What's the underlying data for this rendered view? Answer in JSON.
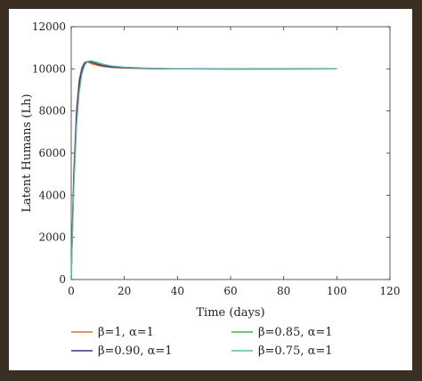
{
  "chart_data": {
    "type": "line",
    "title": "",
    "xlabel": "Time (days)",
    "ylabel": "Latent Humans (Lh)",
    "xlim": [
      0,
      120
    ],
    "ylim": [
      0,
      12000
    ],
    "xticks": [
      0,
      20,
      40,
      60,
      80,
      100,
      120
    ],
    "yticks": [
      0,
      2000,
      4000,
      6000,
      8000,
      10000,
      12000
    ],
    "grid": false,
    "legend_position": "bottom",
    "series": [
      {
        "name": "β=1, α=1",
        "color": "#e0703a",
        "points": [
          [
            0,
            0
          ],
          [
            0.5,
            2800
          ],
          [
            1,
            5200
          ],
          [
            2,
            8100
          ],
          [
            3,
            9500
          ],
          [
            4,
            10050
          ],
          [
            5,
            10300
          ],
          [
            6,
            10330
          ],
          [
            7,
            10280
          ],
          [
            8,
            10220
          ],
          [
            10,
            10160
          ],
          [
            12,
            10110
          ],
          [
            15,
            10070
          ],
          [
            20,
            10035
          ],
          [
            30,
            10010
          ],
          [
            40,
            10000
          ],
          [
            60,
            9990
          ],
          [
            80,
            9995
          ],
          [
            100,
            10000
          ]
        ]
      },
      {
        "name": "β=0.85, α=1",
        "color": "#4caf50",
        "points": [
          [
            0,
            0
          ],
          [
            0.5,
            2500
          ],
          [
            1,
            4700
          ],
          [
            2,
            7600
          ],
          [
            3,
            9100
          ],
          [
            4,
            9900
          ],
          [
            5,
            10250
          ],
          [
            6,
            10350
          ],
          [
            7,
            10370
          ],
          [
            8,
            10340
          ],
          [
            10,
            10250
          ],
          [
            12,
            10180
          ],
          [
            15,
            10110
          ],
          [
            20,
            10060
          ],
          [
            30,
            10020
          ],
          [
            40,
            10005
          ],
          [
            60,
            9995
          ],
          [
            80,
            9995
          ],
          [
            100,
            10000
          ]
        ]
      },
      {
        "name": "β=0.90, α=1",
        "color": "#4b2a78",
        "points": [
          [
            0,
            0
          ],
          [
            0.5,
            2600
          ],
          [
            1,
            4900
          ],
          [
            2,
            7800
          ],
          [
            3,
            9300
          ],
          [
            4,
            9980
          ],
          [
            5,
            10280
          ],
          [
            6,
            10340
          ],
          [
            7,
            10330
          ],
          [
            8,
            10290
          ],
          [
            10,
            10210
          ],
          [
            12,
            10150
          ],
          [
            15,
            10090
          ],
          [
            20,
            10050
          ],
          [
            30,
            10015
          ],
          [
            40,
            10003
          ],
          [
            60,
            9993
          ],
          [
            80,
            9995
          ],
          [
            100,
            10000
          ]
        ]
      },
      {
        "name": "β=0.75, α=1",
        "color": "#5bb8b0",
        "points": [
          [
            0,
            0
          ],
          [
            0.5,
            2300
          ],
          [
            1,
            4400
          ],
          [
            2,
            7300
          ],
          [
            3,
            8900
          ],
          [
            4,
            9750
          ],
          [
            5,
            10150
          ],
          [
            6,
            10330
          ],
          [
            7,
            10380
          ],
          [
            8,
            10370
          ],
          [
            10,
            10300
          ],
          [
            12,
            10220
          ],
          [
            15,
            10140
          ],
          [
            20,
            10080
          ],
          [
            30,
            10030
          ],
          [
            40,
            10010
          ],
          [
            60,
            9998
          ],
          [
            80,
            9996
          ],
          [
            100,
            10000
          ]
        ]
      }
    ]
  }
}
